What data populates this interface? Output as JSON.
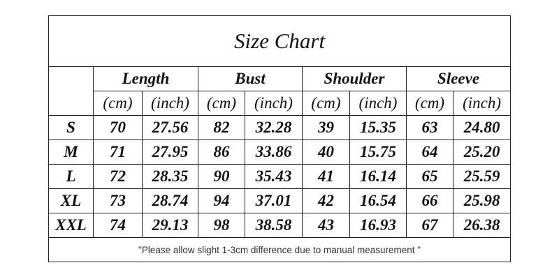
{
  "title": "Size Chart",
  "table": {
    "groups": [
      "Length",
      "Bust",
      "Shoulder",
      "Sleeve"
    ],
    "units": [
      "(cm)",
      "(inch)",
      "(cm)",
      "(inch)",
      "(cm)",
      "(inch)",
      "(cm)",
      "(inch)"
    ],
    "rows": [
      [
        "S",
        "70",
        "27.56",
        "82",
        "32.28",
        "39",
        "15.35",
        "63",
        "24.80"
      ],
      [
        "M",
        "71",
        "27.95",
        "86",
        "33.86",
        "40",
        "15.75",
        "64",
        "25.20"
      ],
      [
        "L",
        "72",
        "28.35",
        "90",
        "35.43",
        "41",
        "16.14",
        "65",
        "25.59"
      ],
      [
        "XL",
        "73",
        "28.74",
        "94",
        "37.01",
        "42",
        "16.54",
        "66",
        "25.98"
      ],
      [
        "XXL",
        "74",
        "29.13",
        "98",
        "38.58",
        "43",
        "16.93",
        "67",
        "26.38"
      ]
    ]
  },
  "footer": "\"Please allow slight 1-3cm difference due to manual measurement \""
}
